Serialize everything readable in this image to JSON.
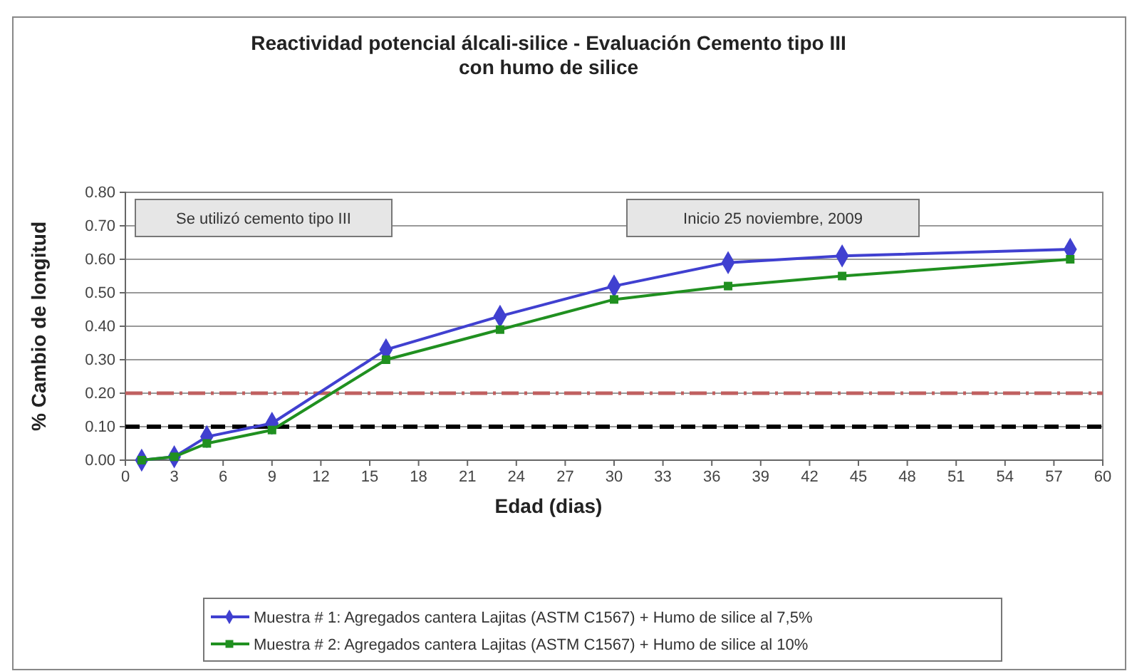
{
  "chart_data": {
    "type": "line",
    "title": "Reactividad potencial álcali-silice  - Evaluación Cemento tipo III\ncon humo de silice",
    "xlabel": "Edad (dias)",
    "ylabel": "% Cambio de longitud",
    "x": [
      1,
      3,
      5,
      9,
      16,
      23,
      30,
      37,
      44,
      58
    ],
    "series": [
      {
        "name": "Muestra # 1: Agregados cantera Lajitas (ASTM  C1567) + Humo de silice al 7,5%",
        "color": "#4040d0",
        "marker": "diamond",
        "values": [
          0.0,
          0.01,
          0.07,
          0.11,
          0.33,
          0.43,
          0.52,
          0.59,
          0.61,
          0.63
        ]
      },
      {
        "name": "Muestra # 2: Agregados cantera Lajitas (ASTM  C1567) + Humo de silice al 10%",
        "color": "#209020",
        "marker": "square",
        "values": [
          0.0,
          0.01,
          0.05,
          0.09,
          0.3,
          0.39,
          0.48,
          0.52,
          0.55,
          0.6
        ]
      }
    ],
    "xlim": [
      0,
      60
    ],
    "xticks": [
      0,
      3,
      6,
      9,
      12,
      15,
      18,
      21,
      24,
      27,
      30,
      33,
      36,
      39,
      42,
      45,
      48,
      51,
      54,
      57,
      60
    ],
    "ylim": [
      0,
      0.8
    ],
    "yticks": [
      {
        "value": 0,
        "label": "0.00"
      },
      {
        "value": 0.1,
        "label": "0.10"
      },
      {
        "value": 0.2,
        "label": "0.20"
      },
      {
        "value": 0.3,
        "label": "0.30"
      },
      {
        "value": 0.4,
        "label": "0.40"
      },
      {
        "value": 0.5,
        "label": "0.50"
      },
      {
        "value": 0.6,
        "label": "0.60"
      },
      {
        "value": 0.7,
        "label": "0.70"
      },
      {
        "value": 0.8,
        "label": "0.80"
      }
    ],
    "ref_lines": [
      {
        "axis": "y",
        "value": 0.2,
        "color": "#c06060",
        "line_style": "dashdot"
      },
      {
        "axis": "y",
        "value": 0.1,
        "color": "#000000",
        "line_style": "dashed"
      }
    ],
    "annotations": [
      "Se utilizó cemento tipo III",
      "Inicio 25 noviembre, 2009"
    ],
    "grid": "y",
    "legend": "bottom",
    "line_style": "solid"
  }
}
